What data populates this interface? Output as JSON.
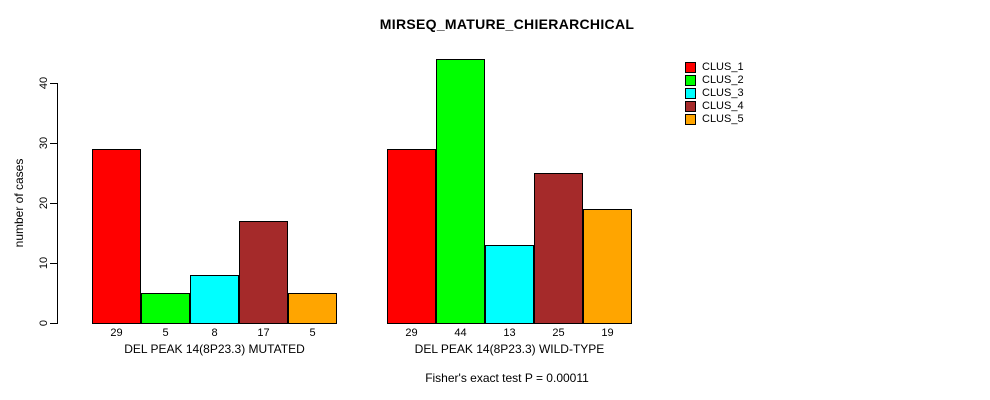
{
  "chart_data": {
    "type": "bar",
    "title": "MIRSEQ_MATURE_CHIERARCHICAL",
    "ylabel": "number of cases",
    "xlabel": "",
    "ylim": [
      0,
      44
    ],
    "yticks": [
      0,
      10,
      20,
      30,
      40
    ],
    "grid": false,
    "legend_position": "top-right",
    "bar_border_color": "#000000",
    "series": [
      {
        "name": "CLUS_1",
        "color": "#FF0000"
      },
      {
        "name": "CLUS_2",
        "color": "#00FF00"
      },
      {
        "name": "CLUS_3",
        "color": "#00FFFF"
      },
      {
        "name": "CLUS_4",
        "color": "#A52A2A"
      },
      {
        "name": "CLUS_5",
        "color": "#FFA500"
      }
    ],
    "groups": [
      {
        "label": "DEL PEAK 14(8P23.3) MUTATED",
        "values": [
          29,
          5,
          8,
          17,
          5
        ]
      },
      {
        "label": "DEL PEAK 14(8P23.3) WILD-TYPE",
        "values": [
          29,
          44,
          13,
          25,
          19
        ]
      }
    ],
    "annotation": "Fisher's exact test P = 0.00011"
  }
}
